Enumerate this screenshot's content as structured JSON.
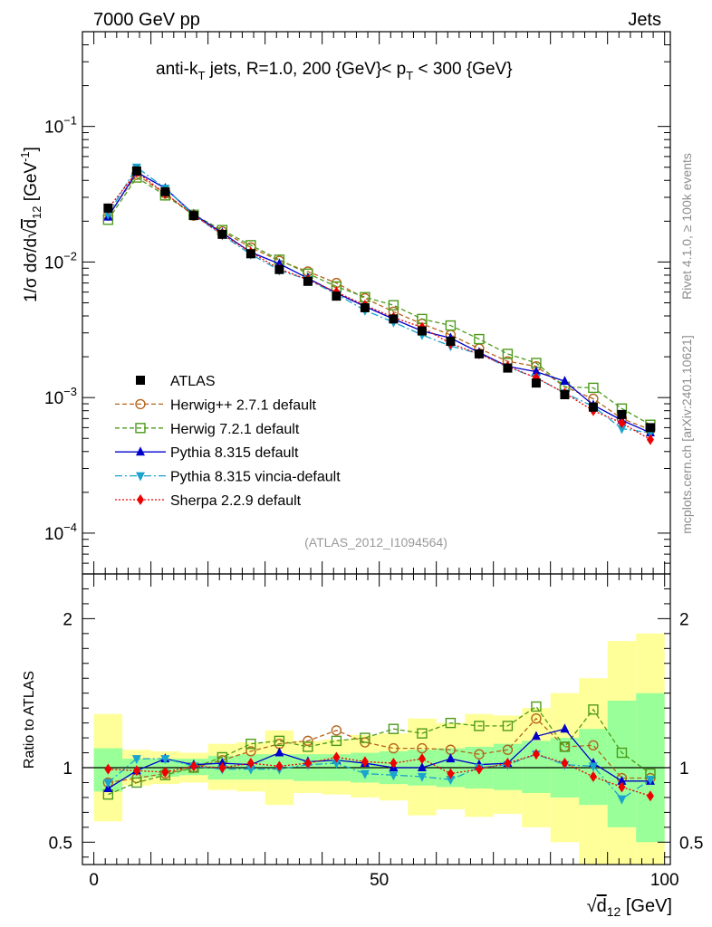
{
  "header": {
    "left": "7000 GeV pp",
    "right": "Jets"
  },
  "side_text": {
    "rivet": "Rivet 4.1.0, ≥ 100k events",
    "mcplots": "mcplots.cern.ch [arXiv:2401.10621]"
  },
  "analysis_id": "(ATLAS_2012_I1094564)",
  "colors": {
    "ATLAS": "#000000",
    "Herwig++": "#b5651d",
    "Herwig7": "#4d9a1a",
    "Pythia": "#0000cc",
    "Vincia": "#1aa3cc",
    "Sherpa": "#ee0000",
    "band_green": "#99ff99",
    "band_yellow": "#ffff99"
  },
  "chart_data": [
    {
      "type": "scatter",
      "panel": "main",
      "title": "anti-k_T jets, R=1.0, 200 {GeV}< p_T < 300 {GeV}",
      "title_parts": {
        "a": "anti-k",
        "a_sub": "T",
        "b": " jets, R=1.0, 200 {GeV}< p",
        "b_sub": "T",
        "c": " < 300 {GeV}"
      },
      "ylabel": "1/σ dσ/d√d12 [GeV⁻¹]",
      "ylabel_parts": {
        "a": "1/σ dσ/d√",
        "d": "d",
        "sub": "12",
        "unit": " [GeV",
        "sup": "-1",
        "close": "]"
      },
      "yscale": "log",
      "ylim": [
        5e-05,
        0.5
      ],
      "ytick_labels": [
        {
          "value": 0.1,
          "base": "10",
          "exp": "−1"
        },
        {
          "value": 0.01,
          "base": "10",
          "exp": "−2"
        },
        {
          "value": 0.001,
          "base": "10",
          "exp": "−3"
        },
        {
          "value": 0.0001,
          "base": "10",
          "exp": "−4"
        }
      ],
      "xlim": [
        -2,
        101
      ],
      "x": [
        2.5,
        7.5,
        12.5,
        17.5,
        22.5,
        27.5,
        32.5,
        37.5,
        42.5,
        47.5,
        52.5,
        57.5,
        62.5,
        67.5,
        72.5,
        77.5,
        82.5,
        87.5,
        92.5,
        97.5
      ],
      "series": [
        {
          "name": "ATLAS",
          "style": "data",
          "marker": "square-filled",
          "values": [
            0.025,
            0.047,
            0.033,
            0.022,
            0.016,
            0.0115,
            0.0088,
            0.0072,
            0.0056,
            0.0046,
            0.0038,
            0.0031,
            0.0026,
            0.0021,
            0.00165,
            0.00128,
            0.00105,
            0.00085,
            0.00075,
            0.0006
          ]
        },
        {
          "name": "Herwig++ 2.7.1 default",
          "style": "dash",
          "marker": "circle-open",
          "values": [
            0.022,
            0.044,
            0.032,
            0.022,
            0.0168,
            0.0128,
            0.0102,
            0.0085,
            0.007,
            0.0054,
            0.0043,
            0.0035,
            0.0029,
            0.0023,
            0.00185,
            0.0017,
            0.0012,
            0.00098,
            0.0007,
            0.00058
          ]
        },
        {
          "name": "Herwig 7.2.1 default",
          "style": "dash",
          "marker": "square-open",
          "values": [
            0.0205,
            0.042,
            0.031,
            0.0223,
            0.0172,
            0.0133,
            0.0104,
            0.0082,
            0.0066,
            0.0055,
            0.0048,
            0.0038,
            0.0034,
            0.0027,
            0.0021,
            0.0018,
            0.0012,
            0.00118,
            0.00083,
            0.00063
          ]
        },
        {
          "name": "Pythia 8.315 default",
          "style": "solid",
          "marker": "triangle-up",
          "values": [
            0.0215,
            0.046,
            0.035,
            0.0225,
            0.0164,
            0.0118,
            0.0097,
            0.0076,
            0.0059,
            0.0047,
            0.0038,
            0.0031,
            0.00275,
            0.00215,
            0.0017,
            0.00155,
            0.00132,
            0.00088,
            0.00068,
            0.00055
          ]
        },
        {
          "name": "Pythia 8.315 vincia-default",
          "style": "dashdot",
          "marker": "triangle-down",
          "values": [
            0.0225,
            0.05,
            0.035,
            0.0222,
            0.0158,
            0.0114,
            0.0087,
            0.0074,
            0.0058,
            0.0044,
            0.0036,
            0.0029,
            0.0024,
            0.0021,
            0.00168,
            0.0014,
            0.00108,
            0.00086,
            0.00059,
            0.00055
          ]
        },
        {
          "name": "Sherpa 2.2.9 default",
          "style": "dot",
          "marker": "diamond",
          "values": [
            0.0248,
            0.046,
            0.032,
            0.0222,
            0.016,
            0.0118,
            0.0089,
            0.0074,
            0.006,
            0.0048,
            0.0039,
            0.0033,
            0.0025,
            0.0021,
            0.0017,
            0.0014,
            0.00108,
            0.0008,
            0.00065,
            0.00049
          ]
        }
      ]
    },
    {
      "type": "scatter",
      "panel": "ratio",
      "ylabel": "Ratio to ATLAS",
      "ylim": [
        0.35,
        2.3
      ],
      "yticks": [
        0.5,
        1,
        2
      ],
      "ytick_labels": [
        "0.5",
        "1",
        "2"
      ],
      "xlim": [
        -2,
        101
      ],
      "xticks": [
        0,
        50,
        100
      ],
      "xtick_labels": [
        "0",
        "50",
        "100"
      ],
      "xlabel": "√d12 [GeV]",
      "xlabel_parts": {
        "d": "d",
        "sub": "12",
        "unit": " [GeV]"
      },
      "x": [
        2.5,
        7.5,
        12.5,
        17.5,
        22.5,
        27.5,
        32.5,
        37.5,
        42.5,
        47.5,
        52.5,
        57.5,
        62.5,
        67.5,
        72.5,
        77.5,
        82.5,
        87.5,
        92.5,
        97.5
      ],
      "band_green": [
        [
          0.84,
          1.13
        ],
        [
          0.93,
          1.06
        ],
        [
          0.94,
          1.06
        ],
        [
          0.95,
          1.06
        ],
        [
          0.92,
          1.08
        ],
        [
          0.92,
          1.09
        ],
        [
          0.92,
          1.09
        ],
        [
          0.91,
          1.09
        ],
        [
          0.91,
          1.09
        ],
        [
          0.9,
          1.1
        ],
        [
          0.89,
          1.11
        ],
        [
          0.88,
          1.12
        ],
        [
          0.87,
          1.13
        ],
        [
          0.86,
          1.14
        ],
        [
          0.85,
          1.16
        ],
        [
          0.83,
          1.18
        ],
        [
          0.8,
          1.2
        ],
        [
          0.75,
          1.26
        ],
        [
          0.6,
          1.45
        ],
        [
          0.5,
          1.5
        ]
      ],
      "band_yellow": [
        [
          0.64,
          1.36
        ],
        [
          0.88,
          1.12
        ],
        [
          0.89,
          1.11
        ],
        [
          0.9,
          1.1
        ],
        [
          0.85,
          1.16
        ],
        [
          0.84,
          1.17
        ],
        [
          0.75,
          1.25
        ],
        [
          0.83,
          1.18
        ],
        [
          0.82,
          1.19
        ],
        [
          0.8,
          1.22
        ],
        [
          0.78,
          1.23
        ],
        [
          0.68,
          1.33
        ],
        [
          0.72,
          1.3
        ],
        [
          0.67,
          1.36
        ],
        [
          0.69,
          1.35
        ],
        [
          0.6,
          1.4
        ],
        [
          0.5,
          1.5
        ],
        [
          0.3,
          1.6
        ],
        [
          0.3,
          1.85
        ],
        [
          0.3,
          1.9
        ]
      ],
      "series": [
        {
          "name": "Herwig++ 2.7.1 default",
          "values": [
            0.9,
            0.93,
            0.96,
            1.0,
            1.05,
            1.11,
            1.16,
            1.18,
            1.25,
            1.17,
            1.13,
            1.13,
            1.12,
            1.09,
            1.12,
            1.33,
            1.14,
            1.15,
            0.93,
            0.93
          ]
        },
        {
          "name": "Herwig 7.2.1 default",
          "values": [
            0.82,
            0.9,
            0.95,
            1.0,
            1.07,
            1.16,
            1.18,
            1.14,
            1.18,
            1.2,
            1.26,
            1.23,
            1.3,
            1.28,
            1.28,
            1.41,
            1.14,
            1.39,
            1.1,
            0.96
          ]
        },
        {
          "name": "Pythia 8.315 default",
          "values": [
            0.86,
            0.98,
            1.06,
            1.02,
            1.03,
            1.02,
            1.1,
            1.04,
            1.05,
            1.03,
            1.0,
            1.0,
            1.06,
            1.02,
            1.03,
            1.21,
            1.26,
            1.03,
            0.91,
            0.91
          ]
        },
        {
          "name": "Pythia 8.315 vincia-default",
          "values": [
            0.9,
            1.06,
            1.06,
            1.01,
            0.99,
            0.99,
            0.99,
            1.02,
            1.03,
            0.96,
            0.95,
            0.94,
            0.92,
            1.0,
            1.02,
            1.09,
            1.02,
            1.01,
            0.79,
            0.92
          ]
        },
        {
          "name": "Sherpa 2.2.9 default",
          "values": [
            0.99,
            0.98,
            0.97,
            1.01,
            1.0,
            1.03,
            1.01,
            1.03,
            1.07,
            1.04,
            1.03,
            1.06,
            0.96,
            0.99,
            1.03,
            1.09,
            1.03,
            0.94,
            0.87,
            0.81
          ]
        }
      ]
    }
  ]
}
